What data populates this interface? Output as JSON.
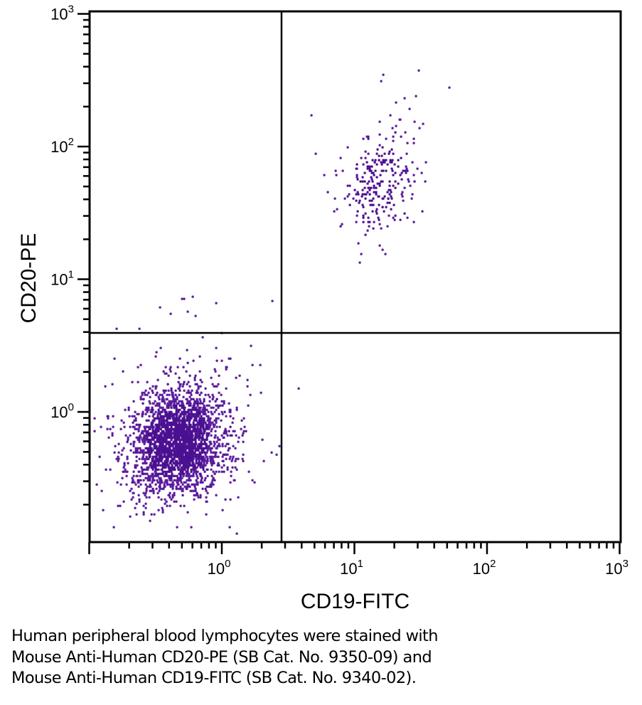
{
  "chart_data": {
    "type": "scatter",
    "title": "",
    "xlabel": "CD19-FITC",
    "ylabel": "CD20-PE",
    "xscale": "log",
    "yscale": "log",
    "xlim": [
      0.1,
      1000
    ],
    "ylim": [
      0.105,
      1000
    ],
    "x_major_ticks": [
      {
        "value": 1,
        "base": "10",
        "exp": "0"
      },
      {
        "value": 10,
        "base": "10",
        "exp": "1"
      },
      {
        "value": 100,
        "base": "10",
        "exp": "2"
      },
      {
        "value": 1000,
        "base": "10",
        "exp": "3"
      }
    ],
    "y_major_ticks": [
      {
        "value": 1,
        "base": "10",
        "exp": "0"
      },
      {
        "value": 10,
        "base": "10",
        "exp": "1"
      },
      {
        "value": 100,
        "base": "10",
        "exp": "2"
      },
      {
        "value": 1000,
        "base": "10",
        "exp": "3"
      }
    ],
    "grid": false,
    "quadrant_gates": {
      "x": 2.82,
      "y": 3.94
    },
    "point_color": "#4b0f91",
    "point_color_sparse": "#5a1a9c",
    "populations": [
      {
        "name": "CD19- CD20- (lower-left)",
        "count": 2600,
        "center": {
          "x": 0.46,
          "y": 0.6
        },
        "log_sd": {
          "x": 0.17,
          "y": 0.2
        },
        "correlation": 0.15
      },
      {
        "name": "CD19+ CD20+ (upper-right)",
        "count": 260,
        "center": {
          "x": 15.5,
          "y": 52
        },
        "log_sd": {
          "x": 0.14,
          "y": 0.2
        },
        "correlation": 0.35
      }
    ],
    "outliers": [
      {
        "x": 16.5,
        "y": 350
      },
      {
        "x": 15.9,
        "y": 310
      },
      {
        "x": 30.5,
        "y": 370
      },
      {
        "x": 52,
        "y": 280
      },
      {
        "x": 26,
        "y": 195
      },
      {
        "x": 22,
        "y": 160
      },
      {
        "x": 31,
        "y": 138
      },
      {
        "x": 5.1,
        "y": 90
      },
      {
        "x": 17.2,
        "y": 15.5
      },
      {
        "x": 5.9,
        "y": 60
      },
      {
        "x": 7.1,
        "y": 40
      },
      {
        "x": 0.5,
        "y": 7
      },
      {
        "x": 0.52,
        "y": 7.1
      },
      {
        "x": 0.6,
        "y": 7.3
      },
      {
        "x": 0.91,
        "y": 6.5
      },
      {
        "x": 0.34,
        "y": 6.2
      },
      {
        "x": 0.55,
        "y": 5.8
      },
      {
        "x": 0.41,
        "y": 5.4
      },
      {
        "x": 0.16,
        "y": 4.3
      },
      {
        "x": 0.63,
        "y": 5.2
      },
      {
        "x": 1.0,
        "y": 3.9
      },
      {
        "x": 1.96,
        "y": 1.38
      },
      {
        "x": 1.7,
        "y": 2.3
      },
      {
        "x": 0.11,
        "y": 0.72
      },
      {
        "x": 0.12,
        "y": 0.46
      }
    ]
  },
  "caption": {
    "lines": [
      "Human peripheral blood lymphocytes were stained with",
      "Mouse Anti-Human CD20-PE (SB Cat. No. 9350-09) and",
      "Mouse Anti-Human CD19-FITC (SB Cat. No. 9340-02)."
    ]
  }
}
